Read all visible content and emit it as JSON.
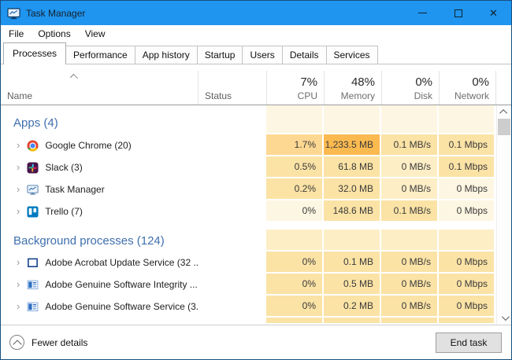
{
  "window": {
    "title": "Task Manager"
  },
  "colors": {
    "titlebar": "#1f95ef",
    "group_header_text": "#3e6fae",
    "heatmap": [
      "#fdf6e2",
      "#fdeec6",
      "#fbe3a6",
      "#fdd892",
      "#fbba50"
    ]
  },
  "titlebar": {
    "minimize": "minimize",
    "maximize": "maximize",
    "close": "✕"
  },
  "menu": {
    "items": [
      "File",
      "Options",
      "View"
    ]
  },
  "tabs": {
    "active_index": 0,
    "items": [
      "Processes",
      "Performance",
      "App history",
      "Startup",
      "Users",
      "Details",
      "Services"
    ]
  },
  "header": {
    "name": "Name",
    "status": "Status",
    "usage": [
      {
        "value": "7%",
        "label": "CPU"
      },
      {
        "value": "48%",
        "label": "Memory"
      },
      {
        "value": "0%",
        "label": "Disk"
      },
      {
        "value": "0%",
        "label": "Network"
      }
    ]
  },
  "groups": [
    {
      "label": "Apps (4)",
      "kind": "apps",
      "header_levels": [
        0,
        0,
        0,
        0
      ],
      "rows": [
        {
          "name": "Google Chrome (20)",
          "icon": "chrome-icon",
          "values": [
            "1.7%",
            "1,233.5 MB",
            "0.1 MB/s",
            "0.1 Mbps"
          ],
          "levels": [
            3,
            4,
            2,
            2
          ]
        },
        {
          "name": "Slack (3)",
          "icon": "slack-icon",
          "values": [
            "0.5%",
            "61.8 MB",
            "0 MB/s",
            "0.1 Mbps"
          ],
          "levels": [
            2,
            2,
            1,
            2
          ]
        },
        {
          "name": "Task Manager",
          "icon": "task-manager-icon",
          "values": [
            "0.2%",
            "32.0 MB",
            "0 MB/s",
            "0 Mbps"
          ],
          "levels": [
            2,
            2,
            1,
            0
          ]
        },
        {
          "name": "Trello (7)",
          "icon": "trello-icon",
          "values": [
            "0%",
            "148.6 MB",
            "0.1 MB/s",
            "0 Mbps"
          ],
          "levels": [
            0,
            2,
            2,
            0
          ]
        }
      ]
    },
    {
      "label": "Background processes (124)",
      "kind": "bg",
      "header_levels": [
        1,
        1,
        1,
        1
      ],
      "rows": [
        {
          "name": "Adobe Acrobat Update Service (32 ...",
          "icon": "document-icon",
          "values": [
            "0%",
            "0.1 MB",
            "0 MB/s",
            "0 Mbps"
          ],
          "levels": [
            2,
            2,
            2,
            2
          ]
        },
        {
          "name": "Adobe Genuine Software Integrity ...",
          "icon": "app-window-icon",
          "values": [
            "0%",
            "0.5 MB",
            "0 MB/s",
            "0 Mbps"
          ],
          "levels": [
            2,
            2,
            2,
            2
          ]
        },
        {
          "name": "Adobe Genuine Software Service (3...",
          "icon": "app-window-icon",
          "values": [
            "0%",
            "0.2 MB",
            "0 MB/s",
            "0 Mbps"
          ],
          "levels": [
            2,
            2,
            2,
            2
          ]
        }
      ]
    }
  ],
  "partial_row_levels": [
    2,
    2,
    2,
    2
  ],
  "footer": {
    "toggle": "Fewer details",
    "end_task": "End task"
  }
}
